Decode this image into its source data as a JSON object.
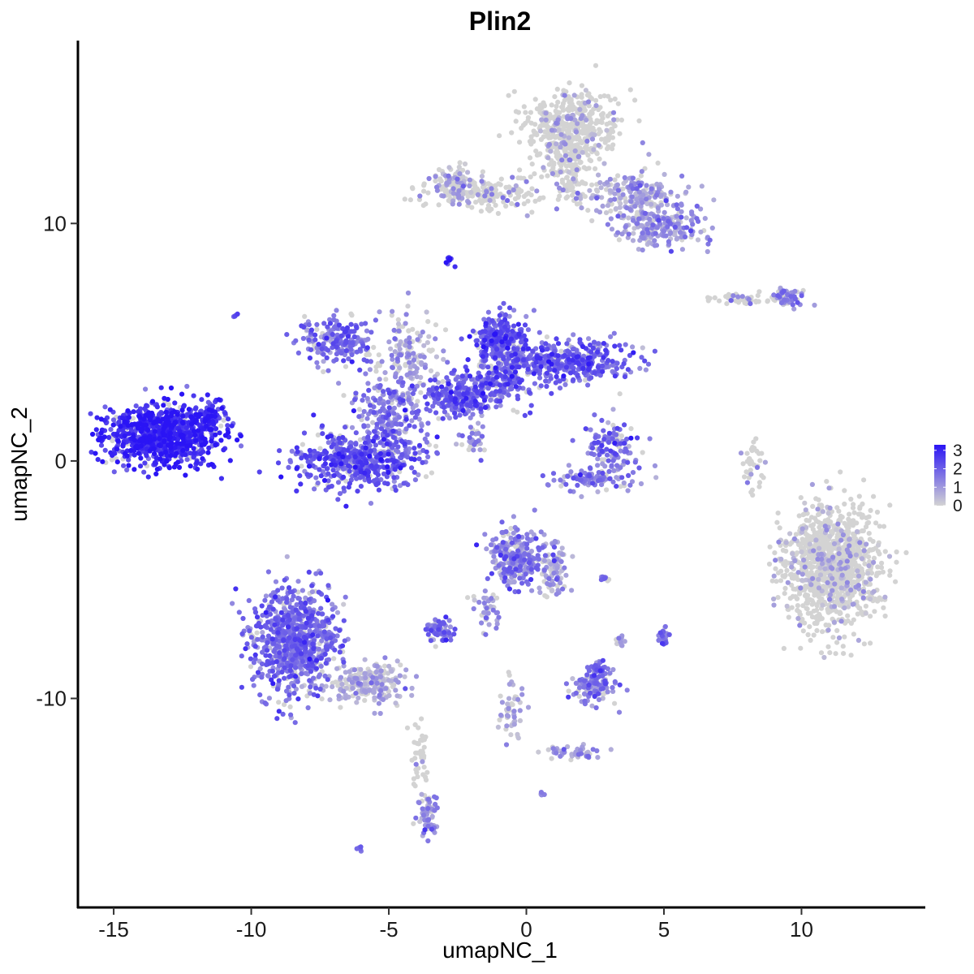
{
  "chart_data": {
    "type": "scatter",
    "title": "Plin2",
    "xlabel": "umapNC_1",
    "ylabel": "umapNC_2",
    "xlim": [
      -16.3,
      14.5
    ],
    "ylim": [
      -18.8,
      17.7
    ],
    "xticks": [
      -15,
      -10,
      -5,
      0,
      5,
      10
    ],
    "yticks": [
      -10,
      0,
      10
    ],
    "grid": false,
    "color_scale": {
      "low": "#d3d3d3",
      "high": "#2a14f5",
      "min": 0,
      "max": 3.3,
      "ticks": [
        0,
        1,
        2,
        3
      ],
      "legend_position": "right"
    },
    "clusters": [
      {
        "cx": -13.2,
        "cy": 1.1,
        "sx": 1.2,
        "sy": 0.75,
        "n": 900,
        "mean_expr": 2.8
      },
      {
        "cx": -11.4,
        "cy": 1.9,
        "sx": 0.35,
        "sy": 0.45,
        "n": 60,
        "mean_expr": 2.5
      },
      {
        "cx": -6.2,
        "cy": 0.0,
        "sx": 1.25,
        "sy": 0.7,
        "n": 450,
        "mean_expr": 2.1
      },
      {
        "cx": -5.0,
        "cy": 2.0,
        "sx": 0.8,
        "sy": 1.2,
        "n": 250,
        "mean_expr": 1.5
      },
      {
        "cx": -6.9,
        "cy": 5.0,
        "sx": 0.7,
        "sy": 0.55,
        "n": 200,
        "mean_expr": 1.6
      },
      {
        "cx": -4.2,
        "cy": 4.6,
        "sx": 0.6,
        "sy": 1.0,
        "n": 130,
        "mean_expr": 0.7
      },
      {
        "cx": -2.6,
        "cy": 2.7,
        "sx": 0.8,
        "sy": 0.5,
        "n": 200,
        "mean_expr": 1.9
      },
      {
        "cx": -0.9,
        "cy": 5.1,
        "sx": 0.55,
        "sy": 0.65,
        "n": 280,
        "mean_expr": 2.1
      },
      {
        "cx": -1.0,
        "cy": 3.3,
        "sx": 0.7,
        "sy": 0.55,
        "n": 200,
        "mean_expr": 1.9
      },
      {
        "cx": 1.6,
        "cy": 4.2,
        "sx": 1.4,
        "sy": 0.5,
        "n": 380,
        "mean_expr": 1.9
      },
      {
        "cx": -2.0,
        "cy": 0.8,
        "sx": 0.3,
        "sy": 0.5,
        "n": 30,
        "mean_expr": 1.2
      },
      {
        "cx": 3.1,
        "cy": 0.5,
        "sx": 0.55,
        "sy": 0.7,
        "n": 120,
        "mean_expr": 1.7
      },
      {
        "cx": 2.4,
        "cy": -0.8,
        "sx": 1.0,
        "sy": 0.3,
        "n": 90,
        "mean_expr": 1.4
      },
      {
        "cx": 1.6,
        "cy": 14.0,
        "sx": 1.1,
        "sy": 0.9,
        "n": 450,
        "mean_expr": 0.12
      },
      {
        "cx": 1.4,
        "cy": 12.2,
        "sx": 0.5,
        "sy": 0.8,
        "n": 120,
        "mean_expr": 0.2
      },
      {
        "cx": -1.5,
        "cy": 11.3,
        "sx": 1.2,
        "sy": 0.4,
        "n": 200,
        "mean_expr": 0.35
      },
      {
        "cx": -2.6,
        "cy": 11.6,
        "sx": 0.5,
        "sy": 0.45,
        "n": 80,
        "mean_expr": 0.5
      },
      {
        "cx": 4.0,
        "cy": 11.2,
        "sx": 1.0,
        "sy": 0.5,
        "n": 220,
        "mean_expr": 0.7
      },
      {
        "cx": 5.0,
        "cy": 9.8,
        "sx": 0.9,
        "sy": 0.5,
        "n": 200,
        "mean_expr": 1.1
      },
      {
        "cx": -2.8,
        "cy": 8.5,
        "sx": 0.1,
        "sy": 0.15,
        "n": 8,
        "mean_expr": 2.8
      },
      {
        "cx": 7.9,
        "cy": 6.8,
        "sx": 0.7,
        "sy": 0.15,
        "n": 50,
        "mean_expr": 0.4
      },
      {
        "cx": 9.5,
        "cy": 6.9,
        "sx": 0.35,
        "sy": 0.25,
        "n": 60,
        "mean_expr": 1.2
      },
      {
        "cx": 11.1,
        "cy": -4.4,
        "sx": 1.0,
        "sy": 1.5,
        "n": 1100,
        "mean_expr": 0.08
      },
      {
        "cx": 8.2,
        "cy": -0.2,
        "sx": 0.2,
        "sy": 0.8,
        "n": 40,
        "mean_expr": 0.35
      },
      {
        "cx": -8.4,
        "cy": -7.6,
        "sx": 0.9,
        "sy": 1.3,
        "n": 800,
        "mean_expr": 1.7
      },
      {
        "cx": -5.8,
        "cy": -9.4,
        "sx": 0.8,
        "sy": 0.5,
        "n": 220,
        "mean_expr": 0.5
      },
      {
        "cx": -3.9,
        "cy": -12.4,
        "sx": 0.2,
        "sy": 1.1,
        "n": 40,
        "mean_expr": 0.3
      },
      {
        "cx": -3.6,
        "cy": -14.9,
        "sx": 0.25,
        "sy": 0.55,
        "n": 70,
        "mean_expr": 1.1
      },
      {
        "cx": -0.4,
        "cy": -4.1,
        "sx": 0.6,
        "sy": 0.7,
        "n": 260,
        "mean_expr": 1.3
      },
      {
        "cx": 1.0,
        "cy": -4.6,
        "sx": 0.35,
        "sy": 0.8,
        "n": 90,
        "mean_expr": 0.8
      },
      {
        "cx": -1.5,
        "cy": -6.2,
        "sx": 0.3,
        "sy": 0.5,
        "n": 40,
        "mean_expr": 1.1
      },
      {
        "cx": -3.2,
        "cy": -7.1,
        "sx": 0.35,
        "sy": 0.25,
        "n": 70,
        "mean_expr": 1.6
      },
      {
        "cx": 2.5,
        "cy": -9.5,
        "sx": 0.5,
        "sy": 0.35,
        "n": 120,
        "mean_expr": 1.4
      },
      {
        "cx": 2.6,
        "cy": -8.8,
        "sx": 0.2,
        "sy": 0.25,
        "n": 40,
        "mean_expr": 1.6
      },
      {
        "cx": -0.5,
        "cy": -10.6,
        "sx": 0.3,
        "sy": 0.9,
        "n": 50,
        "mean_expr": 0.6
      },
      {
        "cx": 1.8,
        "cy": -12.3,
        "sx": 0.8,
        "sy": 0.2,
        "n": 45,
        "mean_expr": 0.8
      },
      {
        "cx": 5.0,
        "cy": -7.4,
        "sx": 0.12,
        "sy": 0.22,
        "n": 25,
        "mean_expr": 1.5
      },
      {
        "cx": 3.4,
        "cy": -7.6,
        "sx": 0.1,
        "sy": 0.2,
        "n": 10,
        "mean_expr": 0.6
      },
      {
        "cx": 2.8,
        "cy": -5.0,
        "sx": 0.15,
        "sy": 0.08,
        "n": 12,
        "mean_expr": 1.5
      },
      {
        "cx": -10.6,
        "cy": 6.1,
        "sx": 0.06,
        "sy": 0.06,
        "n": 5,
        "mean_expr": 2.0
      },
      {
        "cx": -6.0,
        "cy": -16.3,
        "sx": 0.1,
        "sy": 0.06,
        "n": 6,
        "mean_expr": 1.5
      },
      {
        "cx": 0.6,
        "cy": -14.0,
        "sx": 0.05,
        "sy": 0.05,
        "n": 4,
        "mean_expr": 1.0
      }
    ]
  }
}
